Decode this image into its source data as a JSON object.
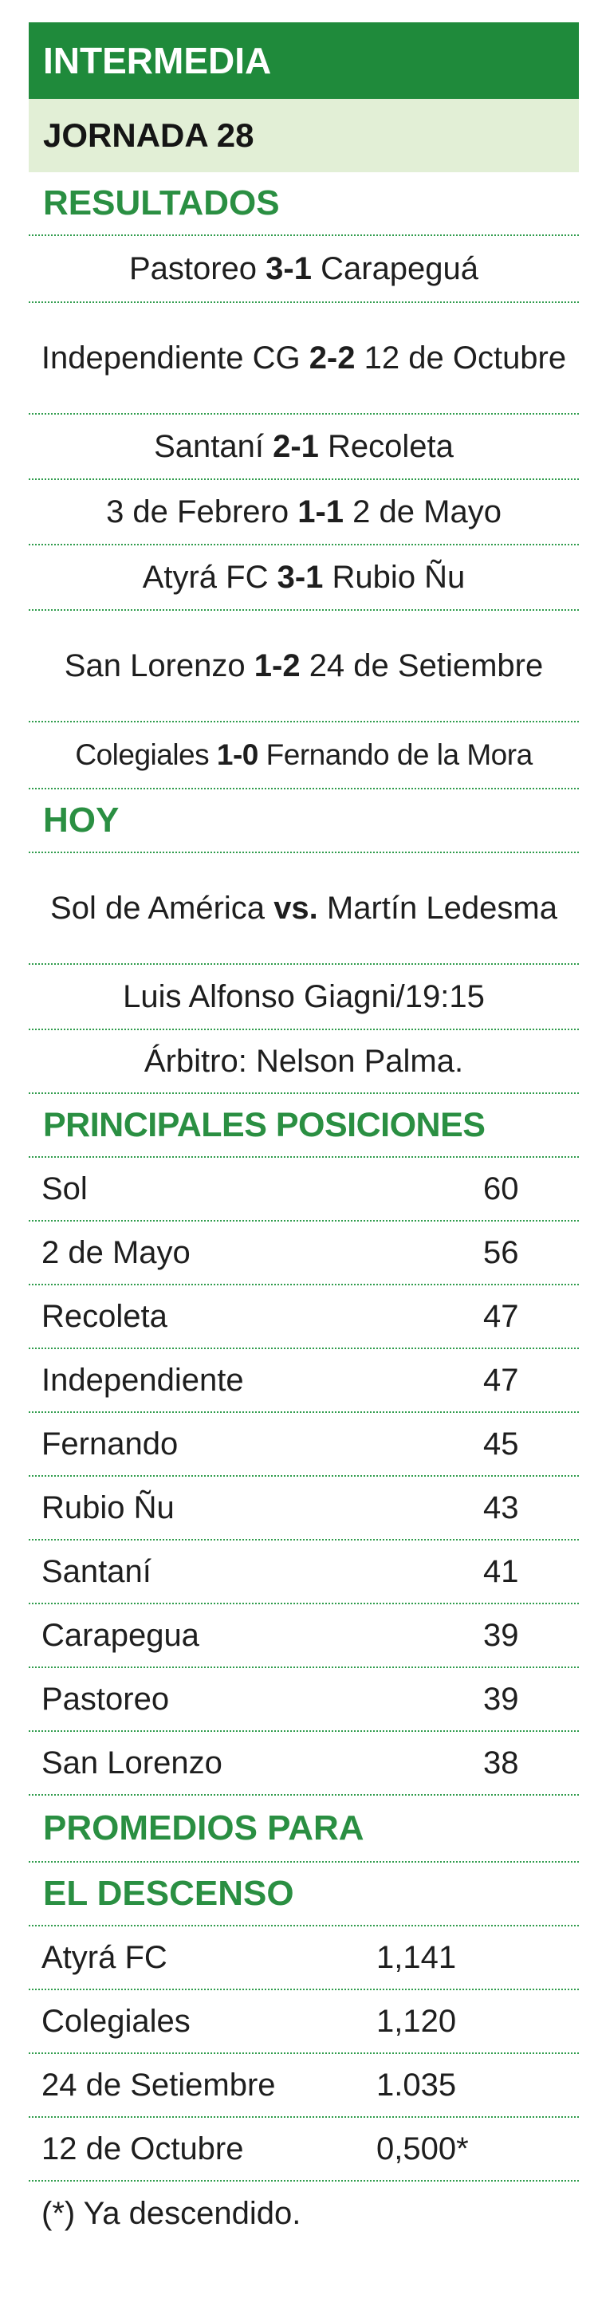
{
  "section_title": "INTERMEDIA",
  "jornada": "JORNADA 28",
  "results": {
    "header": "RESULTADOS",
    "matches": [
      {
        "home": "Pastoreo",
        "score": "3-1",
        "away": "Carapeguá"
      },
      {
        "home": "Independiente CG",
        "score": "2-2",
        "away": "12 de Octubre"
      },
      {
        "home": "Santaní",
        "score": "2-1",
        "away": "Recoleta"
      },
      {
        "home": "3 de Febrero",
        "score": "1-1",
        "away": "2 de Mayo"
      },
      {
        "home": "Atyrá FC",
        "score": "3-1",
        "away": "Rubio Ñu"
      },
      {
        "home": "San Lorenzo",
        "score": "1-2",
        "away": "24 de Setiembre"
      },
      {
        "home": "Colegiales",
        "score": "1-0",
        "away": "Fernando de la Mora"
      }
    ]
  },
  "today": {
    "header": "HOY",
    "home": "Sol de América",
    "vs": "vs.",
    "away": "Martín Ledesma",
    "venue": "Luis Alfonso Giagni/19:15",
    "referee": "Árbitro: Nelson Palma."
  },
  "standings": {
    "header": "PRINCIPALES POSICIONES",
    "rows": [
      {
        "team": "Sol",
        "points": "60"
      },
      {
        "team": "2 de Mayo",
        "points": "56"
      },
      {
        "team": "Recoleta",
        "points": "47"
      },
      {
        "team": "Independiente",
        "points": "47"
      },
      {
        "team": "Fernando",
        "points": "45"
      },
      {
        "team": "Rubio Ñu",
        "points": "43"
      },
      {
        "team": "Santaní",
        "points": "41"
      },
      {
        "team": "Carapegua",
        "points": "39"
      },
      {
        "team": "Pastoreo",
        "points": "39"
      },
      {
        "team": "San Lorenzo",
        "points": "38"
      }
    ]
  },
  "relegation": {
    "header_line1": "PROMEDIOS PARA",
    "header_line2": "EL DESCENSO",
    "rows": [
      {
        "team": "Atyrá FC",
        "average": "1,141"
      },
      {
        "team": "Colegiales",
        "average": "1,120"
      },
      {
        "team": "24 de Setiembre",
        "average": "1.035"
      },
      {
        "team": "12 de Octubre",
        "average": "0,500*"
      }
    ],
    "footnote": "(*) Ya descendido."
  },
  "colors": {
    "accent": "#1f8a3b",
    "heading": "#2a8f42",
    "band": "#e2efd6",
    "text": "#1e1e1e"
  }
}
